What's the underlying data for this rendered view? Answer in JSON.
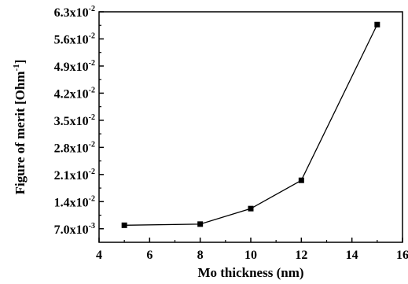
{
  "chart_data": {
    "type": "line",
    "title": "",
    "xlabel": "Mo thickness (nm)",
    "ylabel_main": "Figure of merit [Ohm",
    "ylabel_sup": "-1",
    "ylabel_close": "]",
    "xlim": [
      4,
      16
    ],
    "ylim": [
      0.0035,
      0.063
    ],
    "x_ticks": [
      4,
      6,
      8,
      10,
      12,
      14,
      16
    ],
    "x_tick_labels": [
      "4",
      "6",
      "8",
      "10",
      "12",
      "14",
      "16"
    ],
    "y_ticks": [
      0.007,
      0.014,
      0.021,
      0.028,
      0.035,
      0.042,
      0.049,
      0.056,
      0.063
    ],
    "y_tick_labels": [
      {
        "mantissa": "7.0x10",
        "exp": "-3"
      },
      {
        "mantissa": "1.4x10",
        "exp": "-2"
      },
      {
        "mantissa": "2.1x10",
        "exp": "-2"
      },
      {
        "mantissa": "2.8x10",
        "exp": "-2"
      },
      {
        "mantissa": "3.5x10",
        "exp": "-2"
      },
      {
        "mantissa": "4.2x10",
        "exp": "-2"
      },
      {
        "mantissa": "4.9x10",
        "exp": "-2"
      },
      {
        "mantissa": "5.6x10",
        "exp": "-2"
      },
      {
        "mantissa": "6.3x10",
        "exp": "-2"
      }
    ],
    "series": [
      {
        "x": [
          5,
          8,
          10,
          12,
          15
        ],
        "y": [
          0.0079,
          0.0082,
          0.0122,
          0.0195,
          0.0597
        ],
        "marker": "square",
        "color": "#000000"
      }
    ],
    "grid": false,
    "legend": "none"
  }
}
